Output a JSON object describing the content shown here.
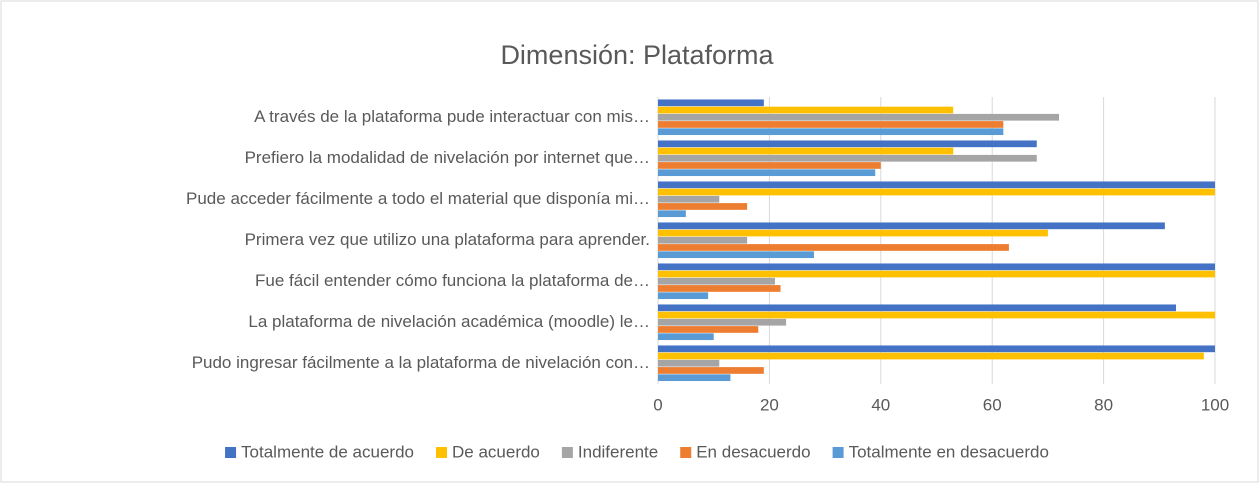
{
  "chart_data": {
    "type": "barh",
    "title": "Dimensión: Plataforma",
    "categories": [
      "A través de la plataforma pude interactuar con mis…",
      "Prefiero la modalidad de nivelación por internet que…",
      "Pude acceder fácilmente a todo el material que disponía mi…",
      "Primera vez que utilizo una plataforma para aprender.",
      "Fue fácil entender cómo funciona la plataforma de…",
      "La plataforma de nivelación académica (moodle) le…",
      "Pudo ingresar fácilmente a la plataforma de nivelación con…"
    ],
    "series": [
      {
        "name": "Totalmente de acuerdo",
        "color": "#4472c4",
        "values": [
          19,
          68,
          100,
          91,
          100,
          93,
          100
        ]
      },
      {
        "name": "De acuerdo",
        "color": "#ffc000",
        "values": [
          53,
          53,
          100,
          70,
          100,
          100,
          98
        ]
      },
      {
        "name": "Indiferente",
        "color": "#a5a5a5",
        "values": [
          72,
          68,
          11,
          16,
          21,
          23,
          11
        ]
      },
      {
        "name": "En desacuerdo",
        "color": "#ed7d31",
        "values": [
          62,
          40,
          16,
          63,
          22,
          18,
          19
        ]
      },
      {
        "name": "Totalmente en desacuerdo",
        "color": "#5b9bd5",
        "values": [
          62,
          39,
          5,
          28,
          9,
          10,
          13
        ]
      }
    ],
    "xlim": [
      0,
      100
    ],
    "xticks": [
      0,
      20,
      40,
      60,
      80,
      100
    ],
    "grid": true,
    "legend": "bottom"
  }
}
